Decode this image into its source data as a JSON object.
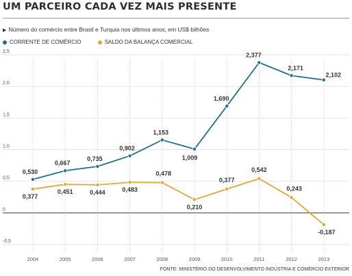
{
  "title": "UM PARCEIRO CADA VEZ MAIS PRESENTE",
  "subtitle": "Número do comércio entre Brasil e Turquia nos últimos anos, em US$ bilhões",
  "source": "FONTE: MINISTÉRIO DO DESENVOLVIMENTO INDÚSTRIA E COMÉRCIO EXTERIOR",
  "chart_data": {
    "type": "line",
    "x": [
      "2004",
      "2005",
      "2006",
      "2007",
      "2008",
      "2009",
      "2010",
      "2011",
      "2012",
      "2013"
    ],
    "y_ticks": [
      "2,5",
      "2,0",
      "1,5",
      "1,0",
      "0,5",
      "0",
      "-0,5"
    ],
    "y_tick_values": [
      2.5,
      2.0,
      1.5,
      1.0,
      0.5,
      0,
      -0.5
    ],
    "ylim": [
      -0.5,
      2.5
    ],
    "grid": {
      "horizontal": true,
      "vertical_dotted": true
    },
    "legend": "top-left",
    "series": [
      {
        "name": "CORRENTE DE COMÉRCIO",
        "color": "#1f6e8c",
        "values": [
          0.53,
          0.667,
          0.735,
          0.902,
          1.153,
          1.009,
          1.69,
          2.377,
          2.171,
          2.102
        ],
        "labels": [
          "0,530",
          "0,667",
          "0,735",
          "0,902",
          "1,153",
          "1,009",
          "1,690",
          "2,377",
          "2,171",
          "2,102"
        ]
      },
      {
        "name": "SALDO DA BALANÇA COMERCIAL",
        "color": "#e3a733",
        "values": [
          0.377,
          0.451,
          0.444,
          0.483,
          0.478,
          0.21,
          0.377,
          0.542,
          0.243,
          -0.187
        ],
        "labels": [
          "0,377",
          "0,451",
          "0,444",
          "0,483",
          "0,478",
          "0,210",
          "0,377",
          "0,542",
          "0,243",
          "-0,187"
        ]
      }
    ]
  }
}
